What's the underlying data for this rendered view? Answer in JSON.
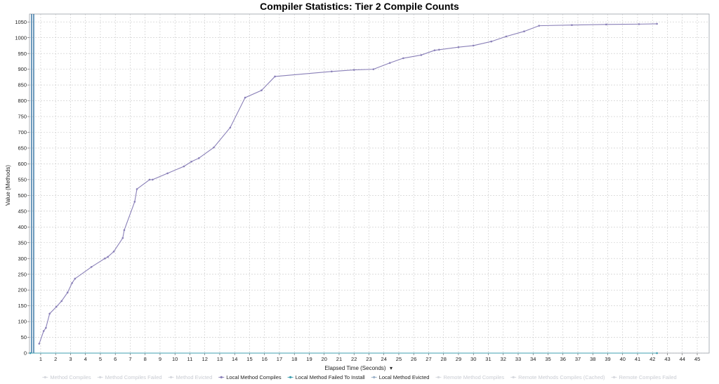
{
  "chart_data": {
    "type": "line",
    "title": "Compiler Statistics: Tier 2 Compile Counts",
    "xlabel": "Elapsed Time (Seconds)",
    "xlabel_menu_glyph": "▾",
    "ylabel": "Value (Methods)",
    "xlim": [
      0.25,
      45.8
    ],
    "ylim": [
      0,
      1075
    ],
    "x_ticks": [
      1,
      2,
      3,
      4,
      5,
      6,
      7,
      8,
      9,
      10,
      11,
      12,
      13,
      14,
      15,
      16,
      17,
      18,
      19,
      20,
      21,
      22,
      23,
      24,
      25,
      26,
      27,
      28,
      29,
      30,
      31,
      32,
      33,
      34,
      35,
      36,
      37,
      38,
      39,
      40,
      41,
      42,
      43,
      44,
      45
    ],
    "y_ticks": [
      0,
      50,
      100,
      150,
      200,
      250,
      300,
      350,
      400,
      450,
      500,
      550,
      600,
      650,
      700,
      750,
      800,
      850,
      900,
      950,
      1000,
      1050
    ],
    "grid": true,
    "legend_position": "bottom",
    "legend": [
      {
        "name": "Method Compiles",
        "active": false
      },
      {
        "name": "Method Compiles Failed",
        "active": false
      },
      {
        "name": "Method Evicted",
        "active": false
      },
      {
        "name": "Local Method Compiles",
        "active": true,
        "color": "#8a80b8"
      },
      {
        "name": "Local Method Failed To Install",
        "active": true,
        "color": "#3f9fb0"
      },
      {
        "name": "Local Method Evicted",
        "active": true,
        "color": "#9ab0c8"
      },
      {
        "name": "Remote Method Compiles",
        "active": false
      },
      {
        "name": "Remote Methods Compiles (Cached)",
        "active": false
      },
      {
        "name": "Remote Compiles Failed",
        "active": false
      }
    ],
    "series": [
      {
        "name": "Local Method Compiles",
        "color": "#8a80b8",
        "x": [
          0.9,
          1.2,
          1.35,
          1.6,
          2.05,
          2.4,
          2.8,
          3.1,
          3.3,
          4.4,
          5.3,
          5.5,
          5.9,
          6.5,
          6.6,
          7.3,
          7.45,
          8.3,
          8.5,
          9.5,
          10.6,
          11.1,
          11.6,
          12.6,
          13.7,
          14.7,
          15.8,
          16.7,
          20.5,
          22.0,
          23.3,
          24.4,
          25.3,
          26.5,
          27.4,
          27.7,
          29.0,
          30.0,
          31.2,
          32.2,
          33.4,
          34.4,
          36.6,
          38.9,
          41.1,
          42.3
        ],
        "y": [
          30,
          70,
          80,
          125,
          147,
          165,
          192,
          222,
          236,
          273,
          300,
          305,
          322,
          365,
          390,
          480,
          520,
          550,
          550,
          570,
          592,
          607,
          618,
          652,
          715,
          810,
          833,
          877,
          893,
          898,
          900,
          920,
          935,
          945,
          960,
          962,
          970,
          975,
          988,
          1004,
          1020,
          1038,
          1040,
          1042,
          1043,
          1044
        ]
      },
      {
        "name": "Local Method Failed To Install",
        "color": "#3f9fb0",
        "x": [
          0.3,
          42.3
        ],
        "y": [
          0,
          0
        ]
      },
      {
        "name": "Local Method Evicted",
        "color": "#9ab0c8",
        "x": [
          0.3,
          42.3
        ],
        "y": [
          0,
          0
        ]
      }
    ]
  }
}
